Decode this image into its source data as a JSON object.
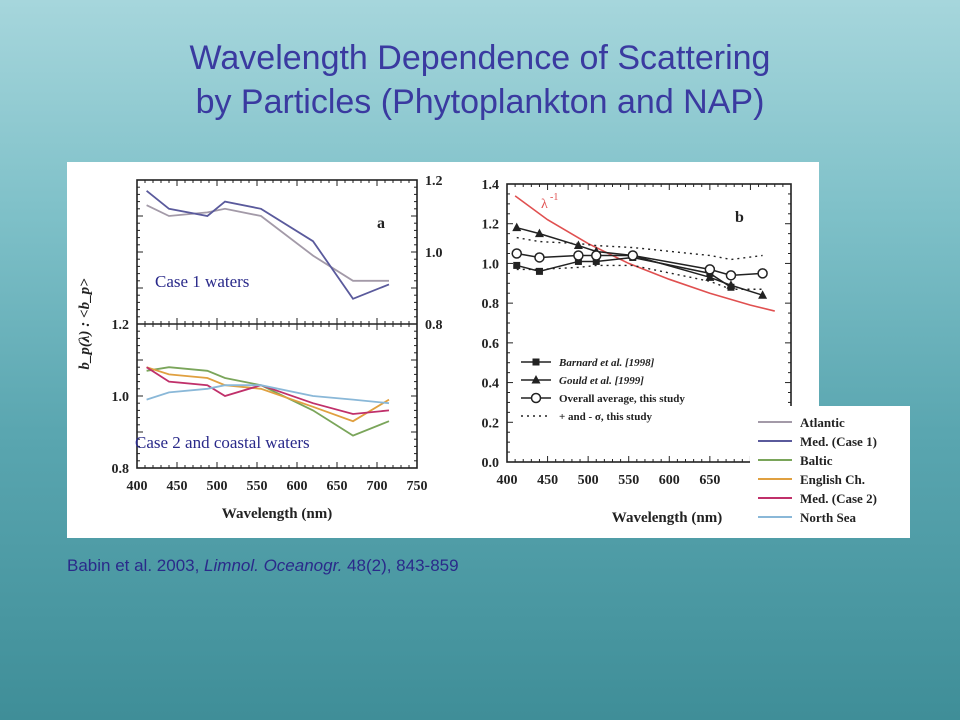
{
  "slide": {
    "title_line1": "Wavelength Dependence of Scattering",
    "title_line2": "by Particles (Phytoplankton and NAP)",
    "citation_authors": "Babin et al. 2003, ",
    "citation_journal": "Limnol. Oceanogr.",
    "citation_rest": "  48(2), 843-859"
  },
  "colors": {
    "Atlantic": "#a39aa8",
    "Med. (Case 1)": "#5a5a9c",
    "Baltic": "#7aa55a",
    "English Ch.": "#e0a040",
    "Med. (Case 2)": "#c0306a",
    "North Sea": "#8ab8d8",
    "lambda": "#e05050",
    "label": "#2a2a8a"
  },
  "chart_data": [
    {
      "type": "line",
      "panel": "a-top",
      "panel_letter": "a",
      "annotation": "Case 1 waters",
      "ylabel": "b_p(λ) : <b_p>",
      "ylim": [
        0.8,
        1.2
      ],
      "yticks_right": [
        "1.2",
        "1.0",
        "0.8"
      ],
      "series": [
        {
          "name": "Atlantic",
          "x": [
            412,
            440,
            488,
            510,
            555,
            620,
            670,
            715
          ],
          "values": [
            1.13,
            1.1,
            1.11,
            1.12,
            1.1,
            0.99,
            0.92,
            0.92
          ]
        },
        {
          "name": "Med. (Case 1)",
          "x": [
            412,
            440,
            488,
            510,
            555,
            620,
            670,
            715
          ],
          "values": [
            1.17,
            1.12,
            1.1,
            1.14,
            1.12,
            1.03,
            0.87,
            0.91
          ]
        }
      ]
    },
    {
      "type": "line",
      "panel": "a-bottom",
      "annotation": "Case 2 and coastal waters",
      "xlabel": "Wavelength (nm)",
      "xlim": [
        400,
        750
      ],
      "xticks": [
        "400",
        "450",
        "500",
        "550",
        "600",
        "650",
        "700",
        "750"
      ],
      "ylim": [
        0.8,
        1.2
      ],
      "yticks_left": [
        "1.2",
        "1.0",
        "0.8"
      ],
      "series": [
        {
          "name": "Baltic",
          "x": [
            412,
            440,
            488,
            510,
            555,
            620,
            670,
            715
          ],
          "values": [
            1.07,
            1.08,
            1.07,
            1.05,
            1.03,
            0.96,
            0.89,
            0.93
          ]
        },
        {
          "name": "English Ch.",
          "x": [
            412,
            440,
            488,
            510,
            555,
            620,
            670,
            715
          ],
          "values": [
            1.08,
            1.06,
            1.05,
            1.03,
            1.02,
            0.97,
            0.93,
            0.99
          ]
        },
        {
          "name": "Med. (Case 2)",
          "x": [
            412,
            440,
            488,
            510,
            555,
            620,
            670,
            715
          ],
          "values": [
            1.08,
            1.04,
            1.03,
            1.0,
            1.03,
            0.98,
            0.95,
            0.96
          ]
        },
        {
          "name": "North Sea",
          "x": [
            412,
            440,
            488,
            510,
            555,
            620,
            670,
            715
          ],
          "values": [
            0.99,
            1.01,
            1.02,
            1.03,
            1.03,
            1.0,
            0.99,
            0.98
          ]
        }
      ]
    },
    {
      "type": "line",
      "panel": "b",
      "panel_letter": "b",
      "xlabel": "Wavelength (nm)",
      "xlim": [
        400,
        750
      ],
      "xticks": [
        "400",
        "450",
        "500",
        "550",
        "600",
        "650"
      ],
      "ylim": [
        0,
        1.4
      ],
      "yticks": [
        "1.4",
        "1.2",
        "1.0",
        "0.8",
        "0.6",
        "0.4",
        "0.2",
        "0.0"
      ],
      "lambda_label": "λ",
      "lambda_exponent": "-1",
      "series": [
        {
          "name": "λ^-1",
          "x": [
            410,
            450,
            500,
            550,
            600,
            650,
            700,
            730
          ],
          "values": [
            1.34,
            1.22,
            1.1,
            1.0,
            0.92,
            0.85,
            0.79,
            0.76
          ]
        },
        {
          "name": "Barnard et al. [1998]",
          "x": [
            412,
            440,
            488,
            510,
            555,
            650,
            676
          ],
          "values": [
            0.99,
            0.96,
            1.01,
            1.01,
            1.03,
            0.95,
            0.88
          ]
        },
        {
          "name": "Gould et al. [1999]",
          "x": [
            412,
            440,
            488,
            510,
            555,
            650,
            676,
            715
          ],
          "values": [
            1.18,
            1.15,
            1.09,
            1.06,
            1.04,
            0.93,
            0.89,
            0.84
          ]
        },
        {
          "name": "Overall average, this study",
          "x": [
            412,
            440,
            488,
            510,
            555,
            650,
            676,
            715
          ],
          "values": [
            1.05,
            1.03,
            1.04,
            1.04,
            1.04,
            0.97,
            0.94,
            0.95
          ]
        },
        {
          "name": "+ and - σ, this study (upper)",
          "x": [
            412,
            440,
            488,
            510,
            555,
            650,
            676,
            715
          ],
          "values": [
            1.13,
            1.11,
            1.1,
            1.09,
            1.08,
            1.04,
            1.02,
            1.04
          ]
        },
        {
          "name": "+ and - σ, this study (lower)",
          "x": [
            412,
            440,
            488,
            510,
            555,
            650,
            676,
            715
          ],
          "values": [
            0.97,
            0.97,
            0.98,
            0.99,
            0.99,
            0.91,
            0.87,
            0.87
          ]
        }
      ],
      "legend_b": [
        {
          "label": "Barnard et al. [1998]",
          "style": "square"
        },
        {
          "label": "Gould et al. [1999]",
          "style": "triangle"
        },
        {
          "label": "Overall average, this study",
          "style": "circle"
        },
        {
          "label": "+ and - σ, this study",
          "style": "dotted"
        }
      ]
    }
  ],
  "legend_a": [
    {
      "label": "Atlantic"
    },
    {
      "label": "Med. (Case 1)"
    },
    {
      "label": "Baltic"
    },
    {
      "label": "English Ch."
    },
    {
      "label": "Med. (Case 2)"
    },
    {
      "label": "North Sea"
    }
  ]
}
